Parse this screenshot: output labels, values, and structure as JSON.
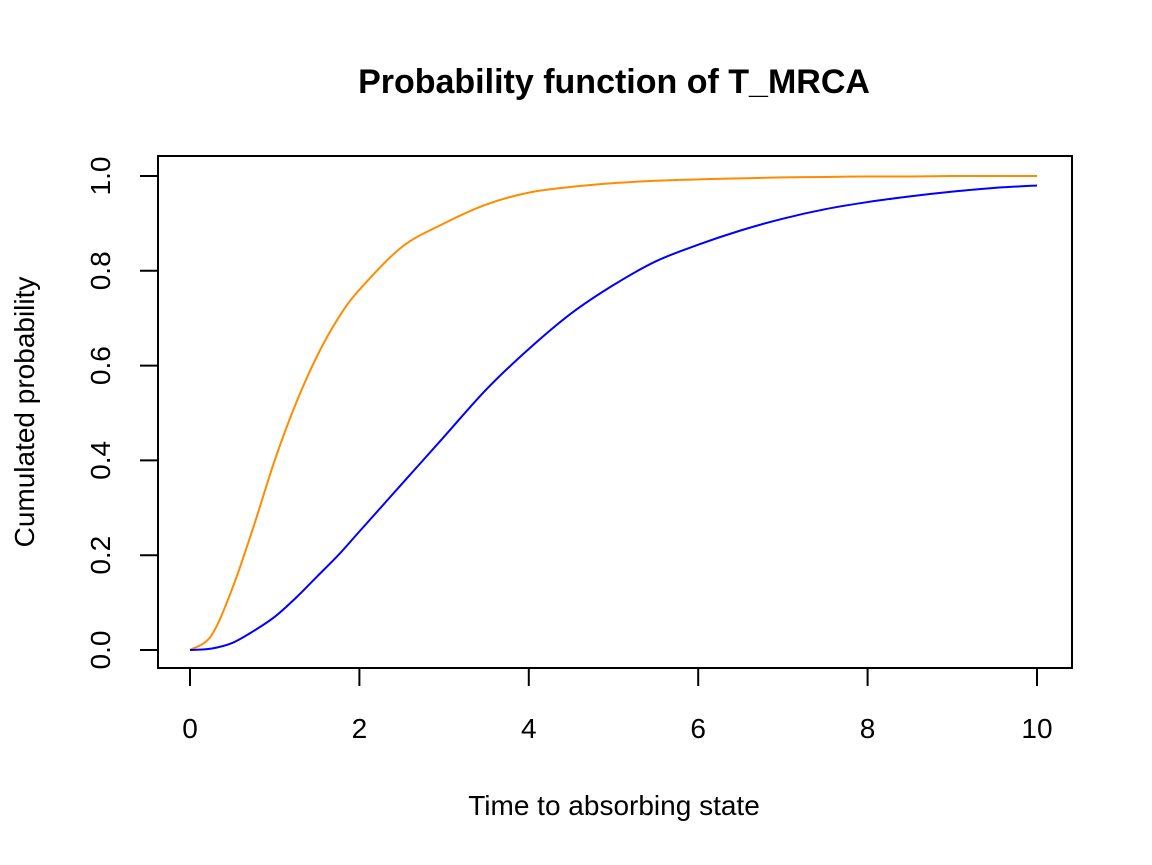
{
  "chart_data": {
    "type": "line",
    "title": "Probability function of T_MRCA",
    "xlabel": "Time to absorbing state",
    "ylabel": "Cumulated probability",
    "xlim": [
      0,
      10
    ],
    "ylim": [
      0,
      1
    ],
    "x_ticks": [
      "0",
      "2",
      "4",
      "6",
      "8",
      "10"
    ],
    "y_ticks": [
      "0.0",
      "0.2",
      "0.4",
      "0.6",
      "0.8",
      "1.0"
    ],
    "grid": false,
    "legend": "none",
    "x": [
      0,
      0.25,
      0.5,
      0.75,
      1,
      1.25,
      1.5,
      1.75,
      2,
      2.5,
      3,
      3.5,
      4,
      4.5,
      5,
      5.5,
      6,
      6.5,
      7,
      7.5,
      8,
      8.5,
      9,
      9.5,
      10
    ],
    "series": [
      {
        "color": "#FF8C00",
        "values": [
          0,
          0.03,
          0.13,
          0.26,
          0.4,
          0.52,
          0.62,
          0.7,
          0.76,
          0.85,
          0.9,
          0.94,
          0.965,
          0.977,
          0.985,
          0.99,
          0.993,
          0.995,
          0.997,
          0.998,
          0.999,
          0.999,
          1.0,
          1.0,
          1.0
        ]
      },
      {
        "color": "#0000FF",
        "values": [
          0,
          0.003,
          0.015,
          0.04,
          0.07,
          0.11,
          0.155,
          0.2,
          0.25,
          0.35,
          0.45,
          0.55,
          0.635,
          0.71,
          0.77,
          0.82,
          0.855,
          0.885,
          0.91,
          0.93,
          0.945,
          0.957,
          0.967,
          0.975,
          0.98
        ]
      }
    ]
  }
}
